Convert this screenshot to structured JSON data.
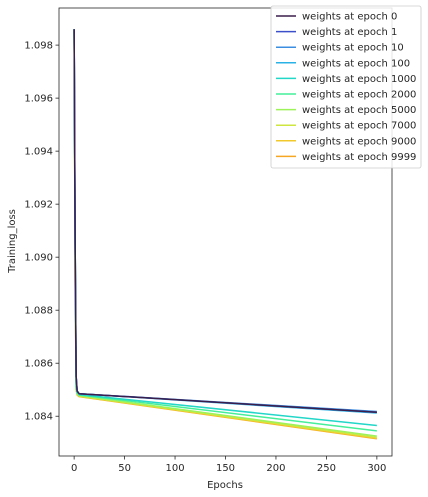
{
  "chart_data": {
    "type": "line",
    "xlabel": "Epochs",
    "ylabel": "Training_loss",
    "xlim": [
      -15,
      315
    ],
    "ylim": [
      1.0825,
      1.0994
    ],
    "x_ticks": [
      0,
      50,
      100,
      150,
      200,
      250,
      300
    ],
    "x_tick_labels": [
      "0",
      "50",
      "100",
      "150",
      "200",
      "250",
      "300"
    ],
    "y_ticks": [
      1.084,
      1.086,
      1.088,
      1.09,
      1.092,
      1.094,
      1.096,
      1.098
    ],
    "y_tick_labels": [
      "1.084",
      "1.086",
      "1.088",
      "1.090",
      "1.092",
      "1.094",
      "1.096",
      "1.098"
    ],
    "grid": false,
    "legend_position": "top-right",
    "series": [
      {
        "name": "weights at epoch 0",
        "color": "#3b1f4a",
        "x": [
          0,
          1,
          2,
          3,
          5,
          300
        ],
        "y": [
          1.0986,
          1.0905,
          1.0855,
          1.08495,
          1.08485,
          1.08415
        ]
      },
      {
        "name": "weights at epoch 1",
        "color": "#3b4fc8",
        "x": [
          0,
          1,
          2,
          3,
          5,
          300
        ],
        "y": [
          1.0986,
          1.0905,
          1.0855,
          1.08495,
          1.08485,
          1.08415
        ]
      },
      {
        "name": "weights at epoch 10",
        "color": "#3b8de0",
        "x": [
          0,
          1,
          2,
          3,
          5,
          300
        ],
        "y": [
          1.0986,
          1.0905,
          1.0855,
          1.08495,
          1.08485,
          1.08418
        ]
      },
      {
        "name": "weights at epoch 100",
        "color": "#2ab2e6",
        "x": [
          0,
          1,
          2,
          3,
          5,
          300
        ],
        "y": [
          1.0986,
          1.0905,
          1.0855,
          1.08495,
          1.08485,
          1.08412
        ]
      },
      {
        "name": "weights at epoch 1000",
        "color": "#22d6c8",
        "x": [
          0,
          1,
          2,
          3,
          5,
          300
        ],
        "y": [
          1.0986,
          1.09,
          1.0852,
          1.0849,
          1.08482,
          1.08365
        ]
      },
      {
        "name": "weights at epoch 2000",
        "color": "#45ef9a",
        "x": [
          0,
          1,
          2,
          3,
          5,
          300
        ],
        "y": [
          1.0986,
          1.0898,
          1.0851,
          1.08488,
          1.0848,
          1.08345
        ]
      },
      {
        "name": "weights at epoch 5000",
        "color": "#9ef25a",
        "x": [
          0,
          1,
          2,
          3,
          5,
          300
        ],
        "y": [
          1.0986,
          1.0895,
          1.085,
          1.08485,
          1.08478,
          1.08325
        ]
      },
      {
        "name": "weights at epoch 7000",
        "color": "#cfe640",
        "x": [
          0,
          1,
          2,
          3,
          5,
          300
        ],
        "y": [
          1.0986,
          1.0893,
          1.085,
          1.08483,
          1.08476,
          1.0832
        ]
      },
      {
        "name": "weights at epoch 9000",
        "color": "#f2c92c",
        "x": [
          0,
          1,
          2,
          3,
          5,
          300
        ],
        "y": [
          1.0986,
          1.0892,
          1.085,
          1.08482,
          1.08475,
          1.08317
        ]
      },
      {
        "name": "weights at epoch 9999",
        "color": "#f5a623",
        "x": [
          0,
          1,
          2,
          3,
          5,
          300
        ],
        "y": [
          1.0986,
          1.0891,
          1.085,
          1.0848,
          1.08474,
          1.08315
        ]
      }
    ]
  }
}
